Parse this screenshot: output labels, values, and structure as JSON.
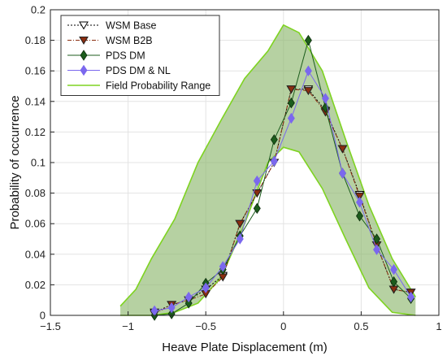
{
  "chart_data": {
    "type": "line",
    "xlabel": "Heave Plate Displacement (m)",
    "ylabel": "Probability of occurrence",
    "xlim": [
      -1.5,
      1
    ],
    "ylim": [
      0,
      0.2
    ],
    "xticks": [
      -1.5,
      -1,
      -0.5,
      0,
      0.5,
      1
    ],
    "xtick_labels": [
      "−1.5",
      "−1",
      "−0.5",
      "0",
      "0.5",
      "1"
    ],
    "yticks": [
      0,
      0.02,
      0.04,
      0.06,
      0.08,
      0.1,
      0.12,
      0.14,
      0.16,
      0.18,
      0.2
    ],
    "ytick_labels": [
      "0",
      "0.02",
      "0.04",
      "0.06",
      "0.08",
      "0.1",
      "0.12",
      "0.14",
      "0.16",
      "0.18",
      "0.2"
    ],
    "grid": true,
    "legend_position": "top-left",
    "series": [
      {
        "name": "WSM Base",
        "color": "#000000",
        "marker": "triangle-down-open",
        "line": "dotted",
        "x": [
          -0.83,
          -0.72,
          -0.61,
          -0.5,
          -0.39,
          -0.28,
          -0.17,
          -0.06,
          0.05,
          0.16,
          0.27,
          0.38,
          0.49,
          0.6,
          0.71,
          0.82
        ],
        "y": [
          0.002,
          0.007,
          0.01,
          0.017,
          0.026,
          0.06,
          0.08,
          0.1,
          0.148,
          0.148,
          0.134,
          0.109,
          0.079,
          0.046,
          0.017,
          0.015
        ]
      },
      {
        "name": "WSM B2B",
        "color": "#8b2d0f",
        "marker": "triangle-down-filled",
        "line": "dash-dot",
        "x": [
          -0.83,
          -0.72,
          -0.61,
          -0.5,
          -0.39,
          -0.28,
          -0.17,
          -0.06,
          0.05,
          0.16,
          0.27,
          0.38,
          0.49,
          0.6,
          0.71,
          0.82
        ],
        "y": [
          0.001,
          0.007,
          0.01,
          0.014,
          0.025,
          0.06,
          0.08,
          0.1,
          0.148,
          0.147,
          0.133,
          0.109,
          0.078,
          0.046,
          0.017,
          0.015
        ]
      },
      {
        "name": "PDS DM",
        "color": "#1c5c1c",
        "marker": "diamond-filled",
        "line": "solid",
        "x": [
          -0.83,
          -0.72,
          -0.61,
          -0.5,
          -0.39,
          -0.28,
          -0.17,
          -0.06,
          0.05,
          0.16,
          0.27,
          0.38,
          0.49,
          0.6,
          0.71,
          0.82
        ],
        "y": [
          0.0,
          0.001,
          0.008,
          0.021,
          0.03,
          0.052,
          0.07,
          0.115,
          0.139,
          0.18,
          0.136,
          0.093,
          0.065,
          0.05,
          0.022,
          0.011
        ]
      },
      {
        "name": "PDS DM & NL",
        "color": "#7b68ee",
        "marker": "diamond-filled",
        "line": "solid",
        "x": [
          -0.83,
          -0.72,
          -0.61,
          -0.5,
          -0.39,
          -0.28,
          -0.17,
          -0.06,
          0.05,
          0.16,
          0.27,
          0.38,
          0.49,
          0.6,
          0.71,
          0.82
        ],
        "y": [
          0.003,
          0.005,
          0.012,
          0.018,
          0.032,
          0.05,
          0.088,
          0.101,
          0.129,
          0.16,
          0.142,
          0.093,
          0.074,
          0.043,
          0.03,
          0.012
        ]
      }
    ],
    "range": {
      "name": "Field Probability Range",
      "line_color": "#7ed321",
      "fill_color": "#8fb870",
      "upper": {
        "x": [
          -1.05,
          -0.95,
          -0.85,
          -0.7,
          -0.55,
          -0.4,
          -0.25,
          -0.1,
          0.0,
          0.1,
          0.25,
          0.4,
          0.55,
          0.7,
          0.85
        ],
        "y": [
          0.006,
          0.017,
          0.037,
          0.063,
          0.1,
          0.128,
          0.155,
          0.173,
          0.19,
          0.185,
          0.16,
          0.115,
          0.072,
          0.037,
          0.012
        ]
      },
      "lower": {
        "x": [
          -1.05,
          -0.95,
          -0.85,
          -0.7,
          -0.55,
          -0.4,
          -0.25,
          -0.1,
          0.0,
          0.1,
          0.25,
          0.4,
          0.55,
          0.7,
          0.85
        ],
        "y": [
          0.0,
          0.0,
          0.0,
          0.002,
          0.008,
          0.025,
          0.06,
          0.1,
          0.11,
          0.107,
          0.083,
          0.05,
          0.018,
          0.002,
          0.0
        ]
      }
    }
  }
}
